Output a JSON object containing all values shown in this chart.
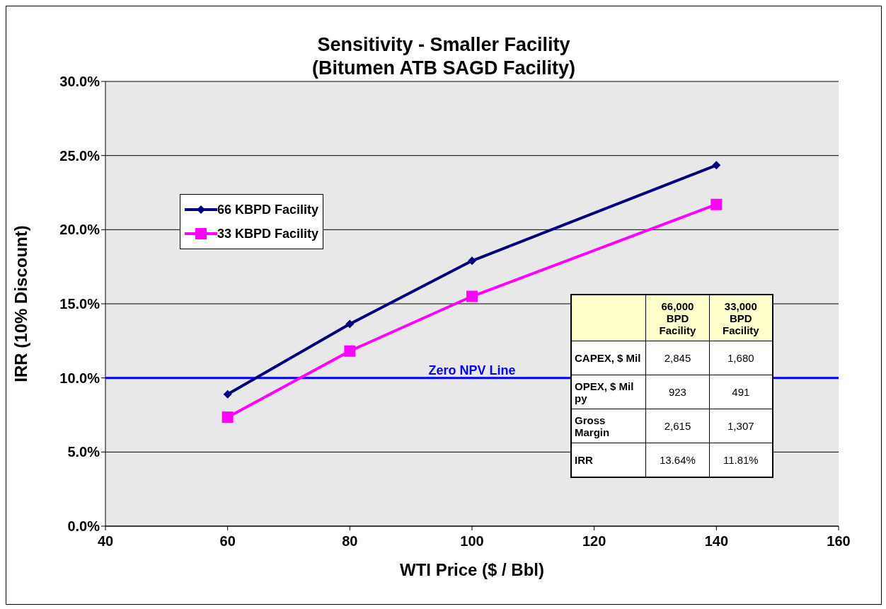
{
  "chart_data": {
    "type": "line",
    "title": "Sensitivity - Smaller Facility\n(Bitumen ATB  SAGD Facility)",
    "xlabel": "WTI Price ($ / Bbl)",
    "ylabel": "IRR (10% Discount)",
    "x": [
      60,
      80,
      100,
      140
    ],
    "series": [
      {
        "name": "66 KBPD Facility",
        "color": "#000080",
        "marker": "diamond",
        "values": [
          8.9,
          13.64,
          17.9,
          24.35
        ]
      },
      {
        "name": "33 KBPD Facility",
        "color": "#ff00ff",
        "marker": "square",
        "values": [
          7.35,
          11.81,
          15.5,
          21.7
        ]
      }
    ],
    "xlim": [
      40,
      160
    ],
    "xticks": [
      40,
      60,
      80,
      100,
      120,
      140,
      160
    ],
    "ylim": [
      0,
      30
    ],
    "yticks": [
      {
        "value": 0,
        "label": "0.0%"
      },
      {
        "value": 5,
        "label": "5.0%"
      },
      {
        "value": 10,
        "label": "10.0%"
      },
      {
        "value": 15,
        "label": "15.0%"
      },
      {
        "value": 20,
        "label": "20.0%"
      },
      {
        "value": 25,
        "label": "25.0%"
      },
      {
        "value": 30,
        "label": "30.0%"
      }
    ],
    "grid": "y",
    "legend": "top left",
    "line_style": "solid",
    "ref_lines": [
      {
        "axis": "y",
        "value": 10,
        "label": "Zero NPV Line",
        "color": "#0000ff"
      }
    ],
    "annotations": [
      "66,000 BPD Facility",
      "33,000 BPD Facility",
      "CAPEX, $ Mil",
      "2,845",
      "1,680",
      "OPEX, $ Mil py",
      "923",
      "491",
      "Gross Margin",
      "2,615",
      "1,307",
      "IRR",
      "13.64%",
      "11.81%"
    ]
  }
}
